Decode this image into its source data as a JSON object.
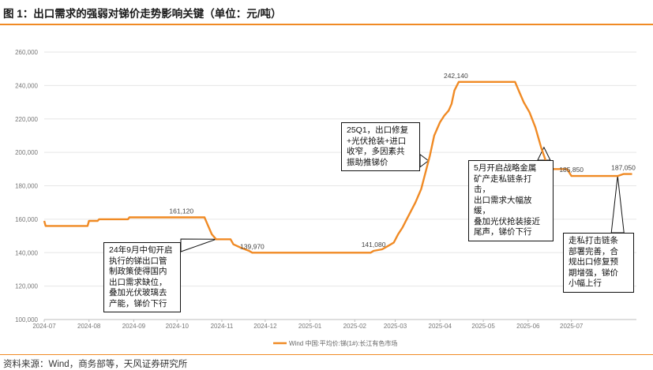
{
  "title": "图 1：出口需求的强弱对锑价走势影响关键（单位：元/吨）",
  "source": "资料来源：Wind，商务部等，天风证券研究所",
  "colors": {
    "accent": "#f08a24",
    "series": "#f08a24",
    "grid": "#e6e6e6"
  },
  "chart_data": {
    "type": "line",
    "grid": true,
    "legend_position": "bottom",
    "ylim": [
      100000,
      260000
    ],
    "yticks": [
      100000,
      120000,
      140000,
      160000,
      180000,
      200000,
      220000,
      240000,
      260000
    ],
    "ytick_labels": [
      "100,000",
      "120,000",
      "140,000",
      "160,000",
      "180,000",
      "200,000",
      "220,000",
      "240,000",
      "260,000"
    ],
    "xticks": [
      "2024-07",
      "2024-08",
      "2024-09",
      "2024-10",
      "2024-11",
      "2024-12",
      "2025-01",
      "2025-02",
      "2025-03",
      "2025-04",
      "2025-05",
      "2025-06",
      "2025-07"
    ],
    "xlim": [
      "2024-07-01",
      "2025-08-15"
    ],
    "series": [
      {
        "name": "Wind 中国:平均价:锑(1#):长江有色市场",
        "points": [
          [
            "2024-07-01",
            159000
          ],
          [
            "2024-07-02",
            156000
          ],
          [
            "2024-07-31",
            156000
          ],
          [
            "2024-08-01",
            159000
          ],
          [
            "2024-08-07",
            159000
          ],
          [
            "2024-08-08",
            160000
          ],
          [
            "2024-08-28",
            160000
          ],
          [
            "2024-08-29",
            161120
          ],
          [
            "2024-10-20",
            161120
          ],
          [
            "2024-10-22",
            157000
          ],
          [
            "2024-10-25",
            151000
          ],
          [
            "2024-10-28",
            148000
          ],
          [
            "2024-11-07",
            148000
          ],
          [
            "2024-11-09",
            145000
          ],
          [
            "2024-11-14",
            143000
          ],
          [
            "2024-11-20",
            141000
          ],
          [
            "2024-11-22",
            139970
          ],
          [
            "2025-01-02",
            140000
          ],
          [
            "2025-02-12",
            140000
          ],
          [
            "2025-02-14",
            141080
          ],
          [
            "2025-02-20",
            142000
          ],
          [
            "2025-02-24",
            144000
          ],
          [
            "2025-02-28",
            146000
          ],
          [
            "2025-03-03",
            151000
          ],
          [
            "2025-03-06",
            155000
          ],
          [
            "2025-03-09",
            160000
          ],
          [
            "2025-03-12",
            165000
          ],
          [
            "2025-03-15",
            170000
          ],
          [
            "2025-03-19",
            178000
          ],
          [
            "2025-03-22",
            188000
          ],
          [
            "2025-03-25",
            198000
          ],
          [
            "2025-03-28",
            210000
          ],
          [
            "2025-04-01",
            218000
          ],
          [
            "2025-04-04",
            222000
          ],
          [
            "2025-04-07",
            225000
          ],
          [
            "2025-04-09",
            229000
          ],
          [
            "2025-04-11",
            237000
          ],
          [
            "2025-04-14",
            242140
          ],
          [
            "2025-05-23",
            242140
          ],
          [
            "2025-05-26",
            236000
          ],
          [
            "2025-05-29",
            230000
          ],
          [
            "2025-06-02",
            224000
          ],
          [
            "2025-06-06",
            215000
          ],
          [
            "2025-06-10",
            203000
          ],
          [
            "2025-06-14",
            193000
          ],
          [
            "2025-06-17",
            190000
          ],
          [
            "2025-06-28",
            190000
          ],
          [
            "2025-07-01",
            185850
          ],
          [
            "2025-08-02",
            185850
          ],
          [
            "2025-08-06",
            187050
          ],
          [
            "2025-08-12",
            187050
          ]
        ]
      }
    ],
    "data_labels": [
      {
        "text": "161,120",
        "x": "2024-10-04",
        "y": 161120
      },
      {
        "text": "139,970",
        "x": "2024-11-22",
        "y": 139970
      },
      {
        "text": "141,080",
        "x": "2025-02-14",
        "y": 141080
      },
      {
        "text": "242,140",
        "x": "2025-04-12",
        "y": 242140
      },
      {
        "text": "185,850",
        "x": "2025-07-01",
        "y": 185850
      },
      {
        "text": "187,050",
        "x": "2025-08-06",
        "y": 187050
      }
    ],
    "annotations": [
      {
        "text": "24年9月中旬开启\n执行的锑出口管\n制政策使得国内\n出口需求缺位，\n叠加光伏玻璃去\n产能，锑价下行",
        "target_x": "2024-10-28",
        "target_y": 148000
      },
      {
        "text": "25Q1，出口修复\n+光伏抢装+进口\n收窄，多因素共\n振助推锑价",
        "target_x": "2025-03-24",
        "target_y": 195000
      },
      {
        "text": "5月开启战略金属\n矿产走私链条打击，\n出口需求大幅放缓，\n叠加光伏抢装接近\n尾声，锑价下行",
        "target_x": "2025-06-12",
        "target_y": 203000
      },
      {
        "text": "走私打击链条\n部署完善，合\n规出口修复预\n期增强，锑价\n小幅上行",
        "target_x": "2025-08-02",
        "target_y": 186000
      }
    ]
  }
}
